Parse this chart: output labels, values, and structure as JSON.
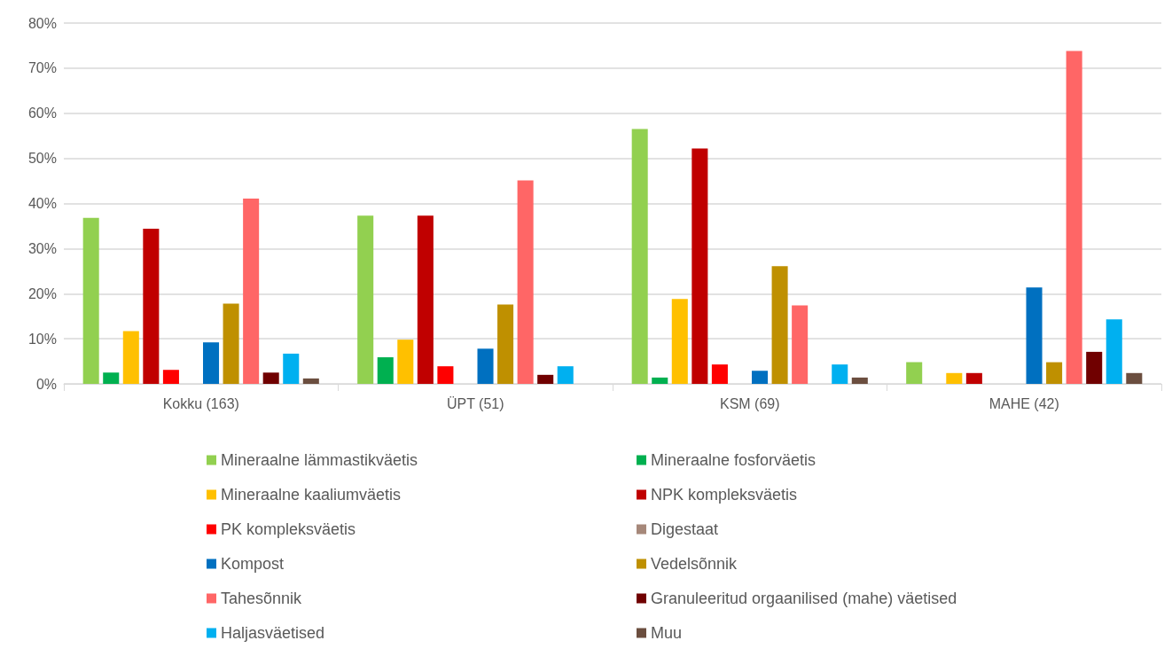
{
  "chart_data": {
    "type": "bar",
    "categories": [
      "Kokku (163)",
      "ÜPT (51)",
      "KSM (69)",
      "MAHE (42)"
    ],
    "ylim": [
      0,
      80
    ],
    "yticks": [
      {
        "value": 0,
        "label": "0%"
      },
      {
        "value": 10,
        "label": "10%"
      },
      {
        "value": 20,
        "label": "20%"
      },
      {
        "value": 30,
        "label": "30%"
      },
      {
        "value": 40,
        "label": "40%"
      },
      {
        "value": 50,
        "label": "50%"
      },
      {
        "value": 60,
        "label": "60%"
      },
      {
        "value": 70,
        "label": "70%"
      },
      {
        "value": 80,
        "label": "80%"
      }
    ],
    "grid": "y",
    "legend": "bottom",
    "series": [
      {
        "name": "Mineraalne lämmastikväetis",
        "color": "#92d050",
        "values": [
          36.8,
          37.3,
          56.5,
          4.8
        ]
      },
      {
        "name": "Mineraalne fosforväetis",
        "color": "#00b050",
        "values": [
          2.5,
          5.9,
          1.4,
          0
        ]
      },
      {
        "name": "Mineraalne kaaliumväetis",
        "color": "#ffc000",
        "values": [
          11.7,
          9.8,
          18.8,
          2.4
        ]
      },
      {
        "name": "NPK kompleksväetis",
        "color": "#c00000",
        "values": [
          34.4,
          37.3,
          52.2,
          2.4
        ]
      },
      {
        "name": "PK kompleksväetis",
        "color": "#ff0000",
        "values": [
          3.1,
          3.9,
          4.3,
          0
        ]
      },
      {
        "name": "Digestaat",
        "color": "#a6887a",
        "values": [
          0,
          0,
          0,
          0
        ]
      },
      {
        "name": "Kompost",
        "color": "#0070c0",
        "values": [
          9.2,
          7.8,
          2.9,
          21.4
        ]
      },
      {
        "name": "Vedelsõnnik",
        "color": "#bf9000",
        "values": [
          17.8,
          17.6,
          26.1,
          4.8
        ]
      },
      {
        "name": "Tahesõnnik",
        "color": "#ff6666",
        "values": [
          41.1,
          45.1,
          17.4,
          73.8
        ]
      },
      {
        "name": "Granuleeritud orgaanilised (mahe) väetised",
        "color": "#700000",
        "values": [
          2.5,
          2.0,
          0,
          7.1
        ]
      },
      {
        "name": "Haljasväetised",
        "color": "#00b0f0",
        "values": [
          6.7,
          3.9,
          4.3,
          14.3
        ]
      },
      {
        "name": "Muu",
        "color": "#6b4e3f",
        "values": [
          1.2,
          0,
          1.4,
          2.4
        ]
      }
    ]
  }
}
